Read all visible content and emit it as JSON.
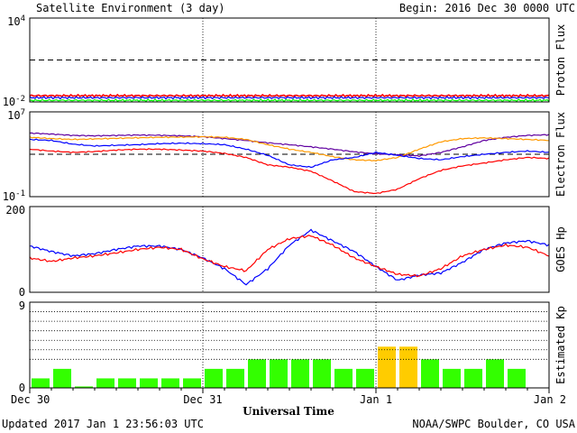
{
  "header": {
    "title": "Satellite Environment (3 day)",
    "begin": "Begin:  2016 Dec 30 0000 UTC"
  },
  "footer": {
    "updated": "Updated 2017 Jan  1 23:56:03 UTC",
    "source": "NOAA/SWPC Boulder, CO USA"
  },
  "chart_data": [
    {
      "id": "proton",
      "type": "line",
      "ylabel": "Proton Flux",
      "ylim": [
        0.01,
        10000
      ],
      "scale": "log",
      "ticks": [
        {
          "value": 10000,
          "base": "10",
          "exp": "4"
        },
        {
          "value": 0.01,
          "base": "10",
          "exp": "-2"
        }
      ],
      "threshold": 10,
      "series": [
        {
          "color": "#ff0000",
          "level": 0.028
        },
        {
          "color": "#0000ff",
          "level": 0.02
        },
        {
          "color": "#00ff00",
          "level": 0.013
        }
      ]
    },
    {
      "id": "electron",
      "type": "line",
      "ylabel": "Electron Flux",
      "ylim": [
        0.1,
        10000000
      ],
      "scale": "log",
      "ticks": [
        {
          "value": 10000000,
          "base": "10",
          "exp": "7"
        },
        {
          "value": 0.1,
          "base": "10",
          "exp": "-1"
        }
      ],
      "threshold": 1000,
      "series": [
        {
          "color": "#6000a0",
          "x": [
            0,
            3,
            6,
            9,
            12,
            15,
            18,
            21,
            24,
            27,
            30,
            33,
            36,
            39,
            42,
            45,
            48,
            51,
            54,
            57,
            60,
            63,
            66,
            69,
            72
          ],
          "y": [
            100000,
            80000,
            60000,
            55000,
            60000,
            65000,
            62000,
            55000,
            45000,
            30000,
            20000,
            12000,
            8000,
            5000,
            3000,
            1700,
            1100,
            900,
            700,
            1500,
            5000,
            20000,
            40000,
            60000,
            70000
          ]
        },
        {
          "color": "#ff9900",
          "x": [
            0,
            3,
            6,
            9,
            12,
            15,
            18,
            21,
            24,
            27,
            30,
            33,
            36,
            39,
            42,
            45,
            48,
            51,
            54,
            57,
            60,
            63,
            66,
            69,
            72
          ],
          "y": [
            40000,
            30000,
            25000,
            28000,
            32000,
            36000,
            40000,
            42000,
            45000,
            40000,
            25000,
            8000,
            3000,
            1500,
            600,
            300,
            250,
            500,
            3000,
            15000,
            30000,
            35000,
            30000,
            25000,
            20000
          ]
        },
        {
          "color": "#0000ff",
          "x": [
            0,
            3,
            6,
            9,
            12,
            15,
            18,
            21,
            24,
            27,
            30,
            33,
            36,
            39,
            42,
            45,
            48,
            51,
            54,
            57,
            60,
            63,
            66,
            69,
            72
          ],
          "y": [
            25000,
            20000,
            9000,
            6000,
            7000,
            8000,
            10000,
            11000,
            10000,
            8000,
            3000,
            800,
            100,
            60,
            300,
            500,
            1500,
            800,
            400,
            300,
            600,
            1000,
            1500,
            2000,
            1500
          ]
        },
        {
          "color": "#ff0000",
          "x": [
            0,
            3,
            6,
            9,
            12,
            15,
            18,
            21,
            24,
            27,
            30,
            33,
            36,
            39,
            42,
            45,
            48,
            51,
            54,
            57,
            60,
            63,
            66,
            69,
            72
          ],
          "y": [
            3000,
            2000,
            1500,
            1800,
            2500,
            3000,
            3000,
            2500,
            2000,
            1200,
            500,
            100,
            60,
            25,
            3,
            0.3,
            0.2,
            0.5,
            5,
            30,
            80,
            150,
            300,
            500,
            400
          ]
        }
      ]
    },
    {
      "id": "goes-hp",
      "type": "line",
      "ylabel": "GOES Hp",
      "ylim": [
        0,
        200
      ],
      "scale": "linear",
      "ticks": [
        {
          "value": 200,
          "label": "200"
        },
        {
          "value": 0,
          "label": "0"
        }
      ],
      "series": [
        {
          "color": "#0000ff",
          "x": [
            0,
            3,
            6,
            9,
            12,
            15,
            18,
            21,
            24,
            27,
            30,
            33,
            36,
            39,
            42,
            45,
            48,
            51,
            54,
            57,
            60,
            63,
            66,
            69,
            72
          ],
          "y": [
            108,
            95,
            85,
            90,
            100,
            108,
            108,
            100,
            80,
            55,
            18,
            55,
            110,
            145,
            120,
            95,
            60,
            28,
            40,
            45,
            70,
            100,
            115,
            120,
            110
          ]
        },
        {
          "color": "#ff0000",
          "x": [
            0,
            3,
            6,
            9,
            12,
            15,
            18,
            21,
            24,
            27,
            30,
            33,
            36,
            39,
            42,
            45,
            48,
            51,
            54,
            57,
            60,
            63,
            66,
            69,
            72
          ],
          "y": [
            80,
            72,
            80,
            85,
            92,
            100,
            105,
            100,
            78,
            60,
            50,
            100,
            125,
            132,
            110,
            80,
            60,
            42,
            38,
            55,
            85,
            100,
            110,
            105,
            85
          ]
        }
      ]
    },
    {
      "id": "kp",
      "type": "bar",
      "ylabel": "Estimated Kp",
      "ylim": [
        0,
        9
      ],
      "scale": "linear",
      "ticks": [
        {
          "value": 9,
          "label": "9"
        },
        {
          "value": 0,
          "label": "0"
        }
      ],
      "values": [
        1,
        2,
        0.15,
        1,
        1,
        1,
        1,
        1,
        2,
        2,
        3,
        3,
        3,
        3,
        2,
        2,
        4.33,
        4.33,
        3,
        2,
        2,
        3,
        2
      ],
      "colors": [
        "#33ff00",
        "#33ff00",
        "#33ff00",
        "#33ff00",
        "#33ff00",
        "#33ff00",
        "#33ff00",
        "#33ff00",
        "#33ff00",
        "#33ff00",
        "#33ff00",
        "#33ff00",
        "#33ff00",
        "#33ff00",
        "#33ff00",
        "#33ff00",
        "#ffcc00",
        "#ffcc00",
        "#33ff00",
        "#33ff00",
        "#33ff00",
        "#33ff00",
        "#33ff00"
      ]
    }
  ],
  "x_axis": {
    "label": "Universal Time",
    "range_hours": [
      0,
      72
    ],
    "ticks": [
      {
        "hour": 0,
        "label": "Dec 30"
      },
      {
        "hour": 24,
        "label": "Dec 31"
      },
      {
        "hour": 48,
        "label": "Jan 1"
      },
      {
        "hour": 72,
        "label": "Jan 2"
      }
    ]
  }
}
